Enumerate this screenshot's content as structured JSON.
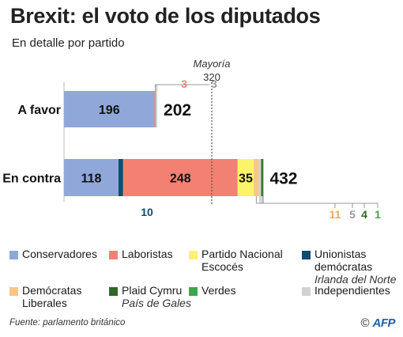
{
  "header": {
    "title": "Brexit: el voto de los diputados",
    "subtitle": "En detalle por partido"
  },
  "chart_data": {
    "type": "bar",
    "orientation": "horizontal",
    "stacked": true,
    "categories": [
      "A favor",
      "En contra"
    ],
    "totals": [
      "202",
      "432"
    ],
    "series": [
      {
        "name": "Conservadores",
        "color": "#8fa7d9",
        "values": [
          196,
          118
        ]
      },
      {
        "name": "Unionistas democráticas",
        "color": "#0d4d6e",
        "values": [
          0,
          10
        ]
      },
      {
        "name": "Laboristas",
        "color": "#f38173",
        "values": [
          3,
          248
        ]
      },
      {
        "name": "Partido Nacional Escocés",
        "color": "#fbf36a",
        "values": [
          0,
          35
        ]
      },
      {
        "name": "Demócratas Liberales",
        "color": "#fbc585",
        "values": [
          0,
          11
        ]
      },
      {
        "name": "Independientes",
        "color": "#d2d2d2",
        "values": [
          3,
          5
        ]
      },
      {
        "name": "Plaid Cymru",
        "color": "#2f6a22",
        "values": [
          0,
          4
        ]
      },
      {
        "name": "Verdes",
        "color": "#39a84f",
        "values": [
          0,
          1
        ]
      }
    ],
    "inside_labels": [
      {
        "row": 0,
        "series": 0,
        "text": "196"
      },
      {
        "row": 1,
        "series": 0,
        "text": "118"
      },
      {
        "row": 1,
        "series": 2,
        "text": "248"
      },
      {
        "row": 1,
        "series": 3,
        "text": "35"
      }
    ],
    "callouts_above": [
      {
        "row": 0,
        "series": 2,
        "text": "3",
        "color": "#f38173"
      },
      {
        "row": 0,
        "series": 5,
        "text": "3",
        "color": "#9a9a9a"
      }
    ],
    "callouts_below": [
      {
        "row": 1,
        "series": 1,
        "text": "10",
        "color": "#0d4d6e"
      },
      {
        "row": 1,
        "series": 4,
        "text": "11",
        "color": "#f5a75a"
      },
      {
        "row": 1,
        "series": 5,
        "text": "5",
        "color": "#9a9a9a"
      },
      {
        "row": 1,
        "series": 6,
        "text": "4",
        "color": "#2f6a22"
      },
      {
        "row": 1,
        "series": 7,
        "text": "1",
        "color": "#39a84f"
      }
    ],
    "reference_line": {
      "value": 320,
      "label": "Mayoría",
      "value_label": "320"
    },
    "xlim": [
      0,
      640
    ]
  },
  "legend": [
    {
      "name": "Conservadores",
      "sub": "",
      "color": "#8fa7d9"
    },
    {
      "name": "Laboristas",
      "sub": "",
      "color": "#f38173"
    },
    {
      "name": "Partido Nacional Escocés",
      "sub": "",
      "color": "#fbf36a"
    },
    {
      "name": "Unionistas demócratas",
      "sub": "Irlanda del Norte",
      "color": "#0d4d6e"
    },
    {
      "name": "Demócratas Liberales",
      "sub": "",
      "color": "#fbc585"
    },
    {
      "name": "Plaid Cymru",
      "sub": "País de Gales",
      "color": "#2f6a22"
    },
    {
      "name": "Verdes",
      "sub": "",
      "color": "#39a84f"
    },
    {
      "name": "Independientes",
      "sub": "",
      "color": "#d2d2d2"
    }
  ],
  "footer": {
    "source": "Fuente: parlamento británico",
    "copyright": "©",
    "logo_text": "AFP"
  }
}
